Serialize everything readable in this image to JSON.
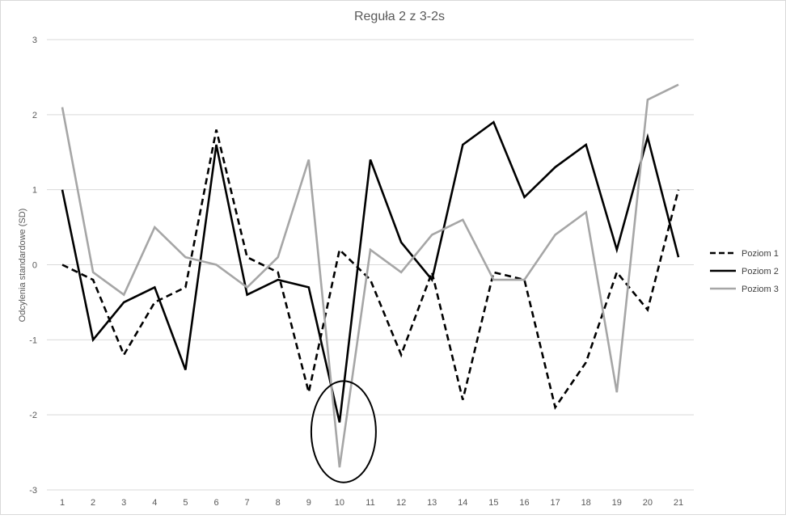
{
  "chart_data": {
    "type": "line",
    "title": "Reguła 2 z 3-2s",
    "xlabel": "",
    "ylabel": "Odcylenia standardowe (SD)",
    "categories": [
      "1",
      "2",
      "3",
      "4",
      "5",
      "6",
      "7",
      "8",
      "9",
      "10",
      "11",
      "12",
      "13",
      "14",
      "15",
      "16",
      "17",
      "18",
      "19",
      "20",
      "21"
    ],
    "yticks": [
      "3",
      "2",
      "1",
      "0",
      "-1",
      "-2",
      "-3"
    ],
    "ylim": [
      -3,
      3
    ],
    "grid": true,
    "legend_position": "right",
    "series": [
      {
        "name": "Poziom 1",
        "color": "#000000",
        "style": "dashed",
        "values": [
          0,
          -0.2,
          -1.2,
          -0.5,
          -0.3,
          1.8,
          0.1,
          -0.1,
          -1.7,
          0.2,
          -0.2,
          -1.2,
          -0.1,
          -1.8,
          -0.1,
          -0.2,
          -1.9,
          -1.3,
          -0.1,
          -0.6,
          1.0
        ]
      },
      {
        "name": "Poziom 2",
        "color": "#000000",
        "style": "solid",
        "values": [
          1.0,
          -1.0,
          -0.5,
          -0.3,
          -1.4,
          1.6,
          -0.4,
          -0.2,
          -0.3,
          -2.1,
          1.4,
          0.3,
          -0.2,
          1.6,
          1.9,
          0.9,
          1.3,
          1.6,
          0.2,
          1.7,
          0.1
        ]
      },
      {
        "name": "Poziom 3",
        "color": "#a6a6a6",
        "style": "solid",
        "values": [
          2.1,
          -0.1,
          -0.4,
          0.5,
          0.1,
          0.0,
          -0.3,
          0.1,
          1.4,
          -2.7,
          0.2,
          -0.1,
          0.4,
          0.6,
          -0.2,
          -0.2,
          0.4,
          0.7,
          -1.7,
          2.2,
          2.4
        ]
      }
    ],
    "annotations": [
      {
        "type": "ellipse",
        "x": "10",
        "y_range": [
          -2.9,
          -1.55
        ]
      }
    ]
  }
}
